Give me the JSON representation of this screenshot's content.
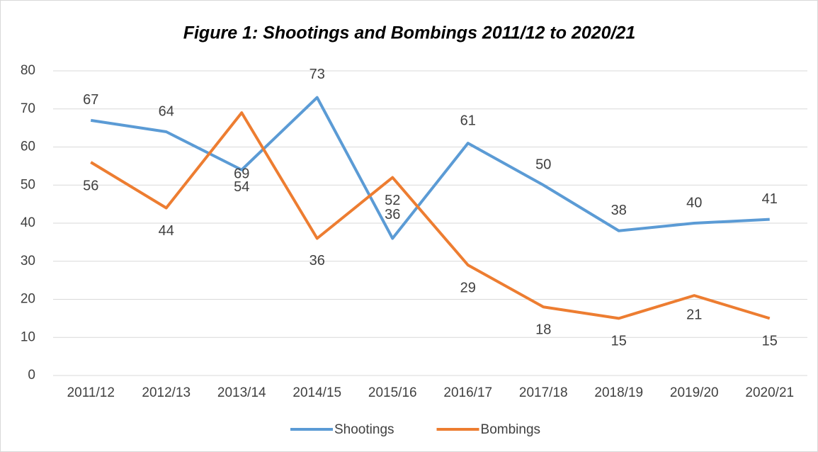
{
  "chart_data": {
    "type": "line",
    "title": "Figure 1: Shootings and Bombings 2011/12 to 2020/21",
    "categories": [
      "2011/12",
      "2012/13",
      "2013/14",
      "2014/15",
      "2015/16",
      "2016/17",
      "2017/18",
      "2018/19",
      "2019/20",
      "2020/21"
    ],
    "series": [
      {
        "name": "Shootings",
        "color": "#5b9bd5",
        "values": [
          67,
          64,
          54,
          73,
          36,
          61,
          50,
          38,
          40,
          41
        ]
      },
      {
        "name": "Bombings",
        "color": "#ed7d31",
        "values": [
          56,
          44,
          69,
          36,
          52,
          29,
          18,
          15,
          21,
          15
        ]
      }
    ],
    "ylim": [
      0,
      80
    ],
    "yticks": [
      0,
      10,
      20,
      30,
      40,
      50,
      60,
      70,
      80
    ],
    "grid": true,
    "legend": "bottom"
  }
}
